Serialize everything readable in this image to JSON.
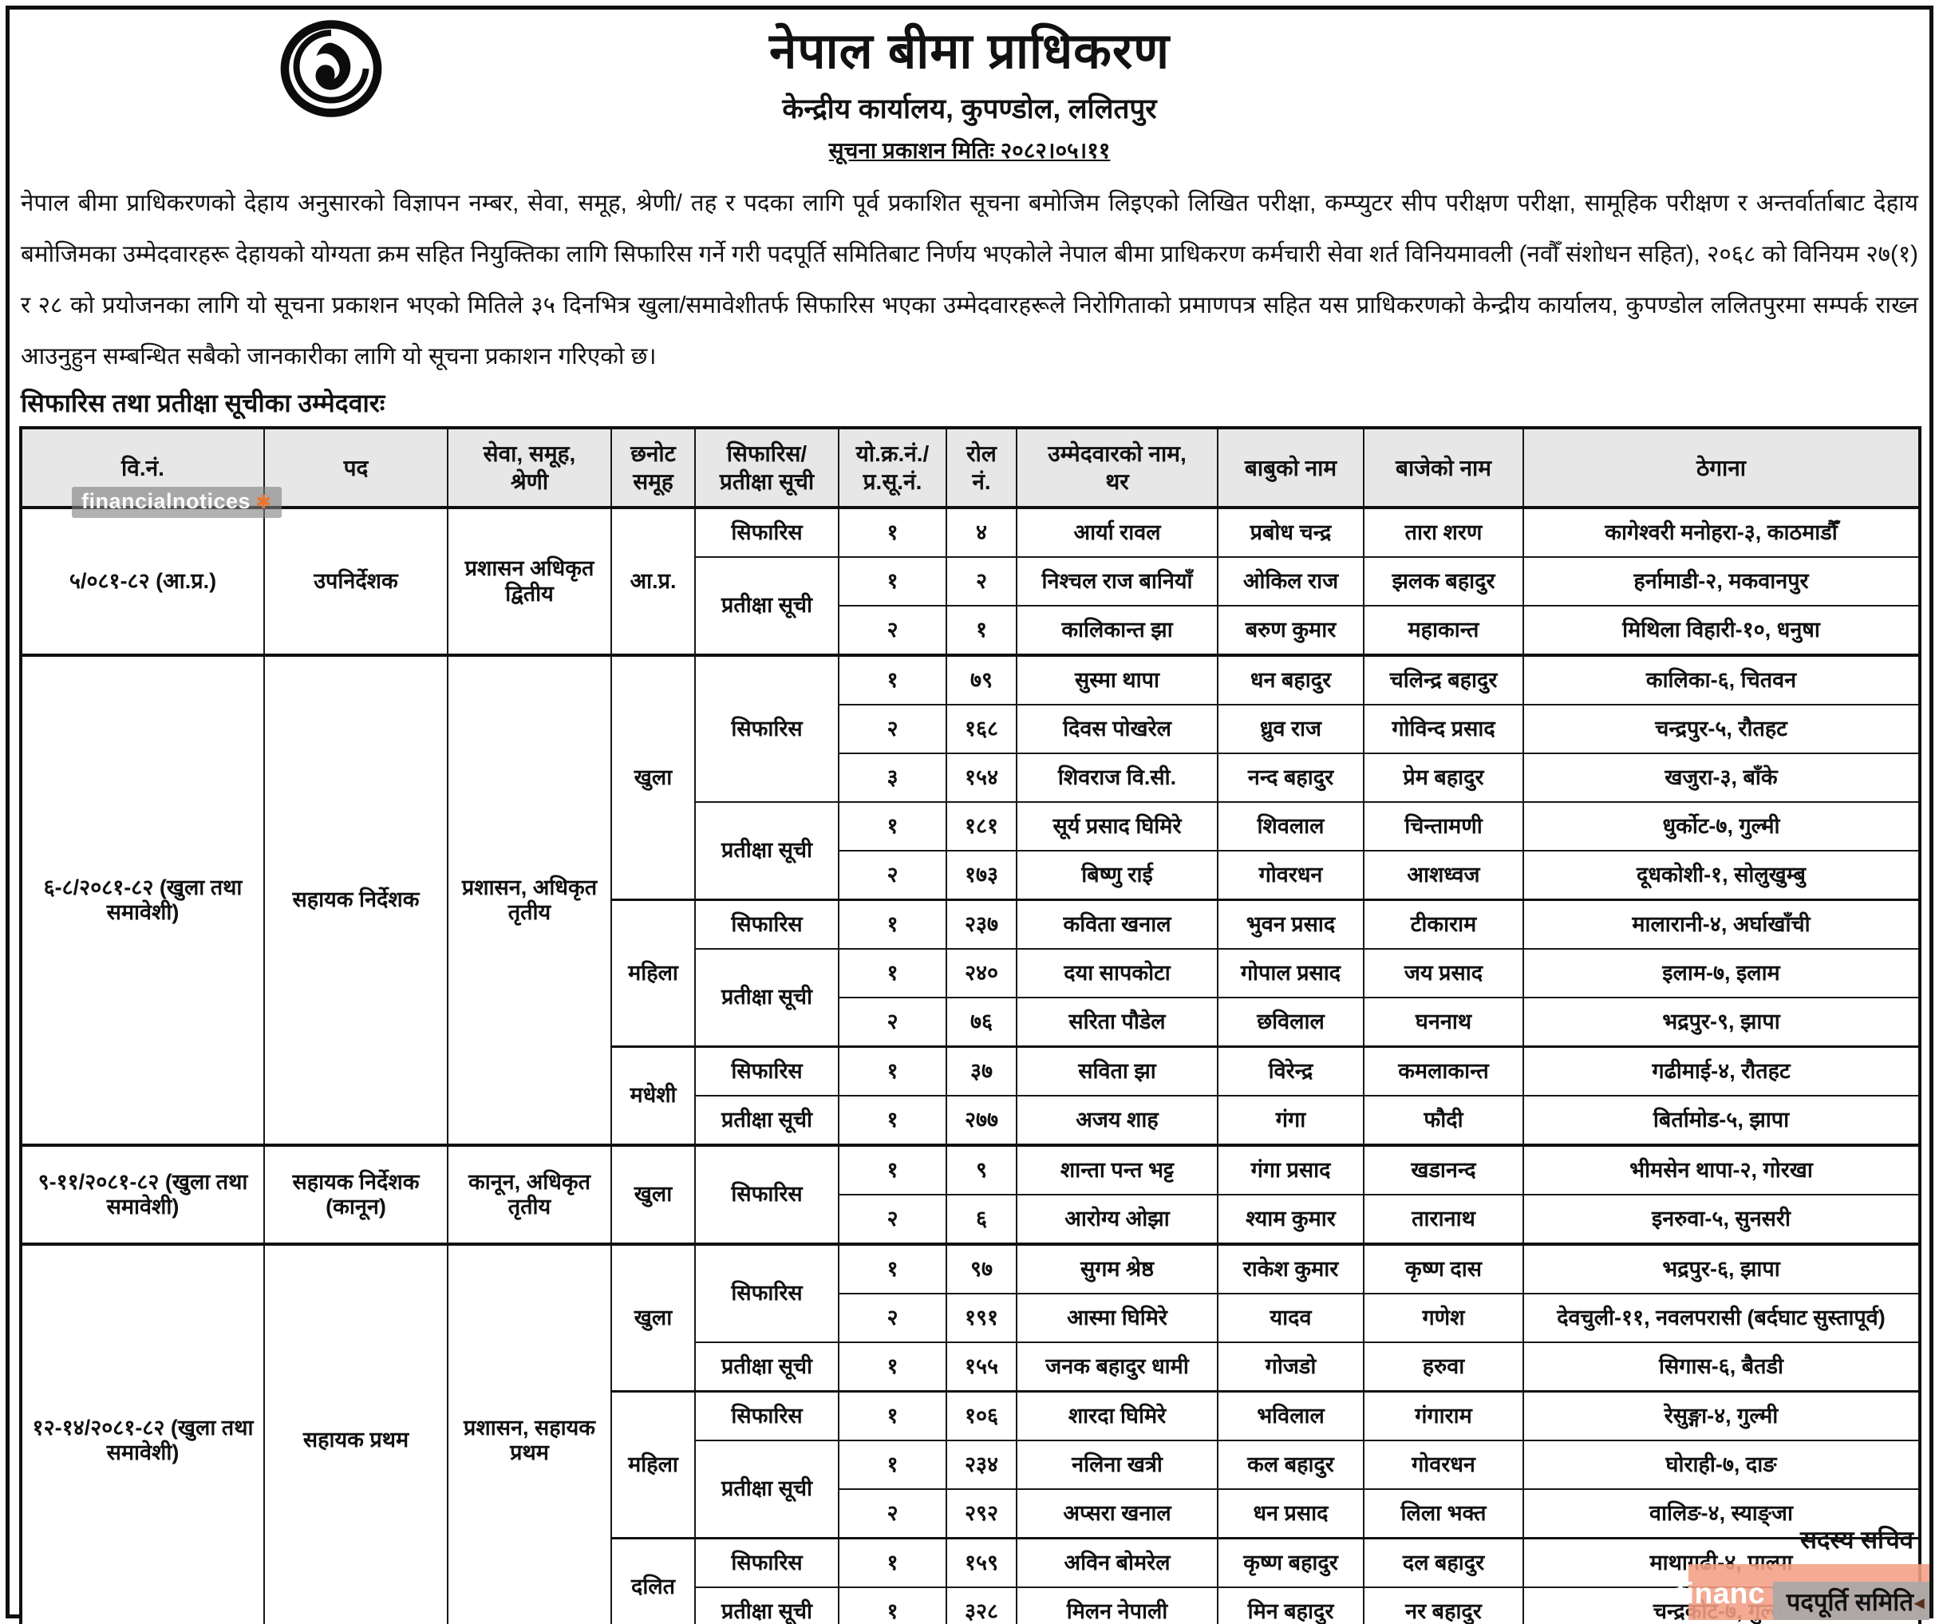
{
  "header": {
    "title": "नेपाल बीमा प्राधिकरण",
    "subtitle": "केन्द्रीय कार्यालय, कुपण्डोल, ललितपुर",
    "date_line": "सूचना प्रकाशन मितिः २०८२।०५।११"
  },
  "intro_paragraph": "नेपाल बीमा प्राधिकरणको देहाय अनुसारको विज्ञापन नम्बर, सेवा, समूह, श्रेणी/ तह र पदका लागि पूर्व प्रकाशित सूचना बमोजिम लिइएको लिखित परीक्षा, कम्प्युटर सीप परीक्षण परीक्षा, सामूहिक परीक्षण र अन्तर्वार्ताबाट देहाय बमोजिमका उम्मेदवारहरू देहायको योग्यता क्रम सहित नियुक्तिका लागि सिफारिस गर्ने गरी पदपूर्ति समितिबाट निर्णय भएकोले नेपाल बीमा प्राधिकरण कर्मचारी सेवा शर्त विनियमावली (नवौँ संशोधन सहित), २०६८ को विनियम २७(१) र २८ को प्रयोजनका लागि यो सूचना प्रकाशन भएको मितिले ३५ दिनभित्र खुला/समावेशीतर्फ सिफारिस भएका उम्मेदवारहरूले निरोगिताको प्रमाणपत्र सहित यस प्राधिकरणको केन्द्रीय कार्यालय, कुपण्डोल ललितपुरमा सम्पर्क राख्न आउनुहुन सम्बन्धित सबैको जानकारीका लागि यो सूचना प्रकाशन गरिएको छ।",
  "section_heading": "सिफारिस तथा प्रतीक्षा सूचीका उम्मेदवारः",
  "table": {
    "headers": [
      "वि.नं.",
      "पद",
      "सेवा, समूह,\nश्रेणी",
      "छनोट\nसमूह",
      "सिफारिस/\nप्रतीक्षा सूची",
      "यो.क्र.नं./\nप्र.सू.नं.",
      "रोल\nनं.",
      "उम्मेदवारको नाम,\nथर",
      "बाबुको नाम",
      "बाजेको नाम",
      "ठेगाना"
    ],
    "sections": [
      {
        "vn": "५/०८१-८२ (आ.प्र.)",
        "post": "उपनिर्देशक",
        "service": "प्रशासन अधिकृत द्वितीय",
        "groups": [
          {
            "name": "आ.प्र.",
            "lists": [
              {
                "type": "सिफारिस",
                "candidates": [
                  {
                    "sn": "१",
                    "roll": "४",
                    "name": "आर्या रावल",
                    "father": "प्रबोध चन्द्र",
                    "grandfather": "तारा शरण",
                    "address": "कागेश्वरी मनोहरा-३, काठमाडौँ"
                  }
                ]
              },
              {
                "type": "प्रतीक्षा सूची",
                "candidates": [
                  {
                    "sn": "१",
                    "roll": "२",
                    "name": "निश्चल राज बानियाँ",
                    "father": "ओकिल राज",
                    "grandfather": "झलक बहादुर",
                    "address": "हर्नामाडी-२, मकवानपुर"
                  },
                  {
                    "sn": "२",
                    "roll": "१",
                    "name": "कालिकान्त झा",
                    "father": "बरुण कुमार",
                    "grandfather": "महाकान्त",
                    "address": "मिथिला विहारी-१०, धनुषा"
                  }
                ]
              }
            ]
          }
        ]
      },
      {
        "vn": "६-८/२०८१-८२ (खुला तथा समावेशी)",
        "post": "सहायक निर्देशक",
        "service": "प्रशासन, अधिकृत तृतीय",
        "groups": [
          {
            "name": "खुला",
            "lists": [
              {
                "type": "सिफारिस",
                "candidates": [
                  {
                    "sn": "१",
                    "roll": "७९",
                    "name": "सुस्मा थापा",
                    "father": "धन बहादुर",
                    "grandfather": "चलिन्द्र बहादुर",
                    "address": "कालिका-६, चितवन"
                  },
                  {
                    "sn": "२",
                    "roll": "१६८",
                    "name": "दिवस पोखरेल",
                    "father": "ध्रुव राज",
                    "grandfather": "गोविन्द प्रसाद",
                    "address": "चन्द्रपुर-५, रौतहट"
                  },
                  {
                    "sn": "३",
                    "roll": "१५४",
                    "name": "शिवराज वि.सी.",
                    "father": "नन्द बहादुर",
                    "grandfather": "प्रेम बहादुर",
                    "address": "खजुरा-३, बाँके"
                  }
                ]
              },
              {
                "type": "प्रतीक्षा सूची",
                "candidates": [
                  {
                    "sn": "१",
                    "roll": "१८१",
                    "name": "सूर्य प्रसाद घिमिरे",
                    "father": "शिवलाल",
                    "grandfather": "चिन्तामणी",
                    "address": "धुर्कोट-७, गुल्मी"
                  },
                  {
                    "sn": "२",
                    "roll": "१७३",
                    "name": "बिष्णु राई",
                    "father": "गोवरधन",
                    "grandfather": "आशध्वज",
                    "address": "दूधकोशी-१, सोलुखुम्बु"
                  }
                ]
              }
            ]
          },
          {
            "name": "महिला",
            "lists": [
              {
                "type": "सिफारिस",
                "candidates": [
                  {
                    "sn": "१",
                    "roll": "२३७",
                    "name": "कविता खनाल",
                    "father": "भुवन प्रसाद",
                    "grandfather": "टीकाराम",
                    "address": "मालारानी-४, अर्घाखाँची"
                  }
                ]
              },
              {
                "type": "प्रतीक्षा सूची",
                "candidates": [
                  {
                    "sn": "१",
                    "roll": "२४०",
                    "name": "दया सापकोटा",
                    "father": "गोपाल प्रसाद",
                    "grandfather": "जय प्रसाद",
                    "address": "इलाम-७, इलाम"
                  },
                  {
                    "sn": "२",
                    "roll": "७६",
                    "name": "सरिता पौडेल",
                    "father": "छविलाल",
                    "grandfather": "घननाथ",
                    "address": "भद्रपुर-९, झापा"
                  }
                ]
              }
            ]
          },
          {
            "name": "मधेशी",
            "lists": [
              {
                "type": "सिफारिस",
                "candidates": [
                  {
                    "sn": "१",
                    "roll": "३७",
                    "name": "सविता झा",
                    "father": "विरेन्द्र",
                    "grandfather": "कमलाकान्त",
                    "address": "गढीमाई-४, रौतहट"
                  }
                ]
              },
              {
                "type": "प्रतीक्षा सूची",
                "candidates": [
                  {
                    "sn": "१",
                    "roll": "२७७",
                    "name": "अजय शाह",
                    "father": "गंगा",
                    "grandfather": "फौदी",
                    "address": "बिर्तामोड-५, झापा"
                  }
                ]
              }
            ]
          }
        ]
      },
      {
        "vn": "९-११/२०८१-८२ (खुला तथा समावेशी)",
        "post": "सहायक निर्देशक (कानून)",
        "service": "कानून, अधिकृत तृतीय",
        "groups": [
          {
            "name": "खुला",
            "lists": [
              {
                "type": "सिफारिस",
                "candidates": [
                  {
                    "sn": "१",
                    "roll": "९",
                    "name": "शान्ता पन्त भट्ट",
                    "father": "गंगा प्रसाद",
                    "grandfather": "खडानन्द",
                    "address": "भीमसेन थापा-२, गोरखा"
                  },
                  {
                    "sn": "२",
                    "roll": "६",
                    "name": "आरोग्य ओझा",
                    "father": "श्याम कुमार",
                    "grandfather": "तारानाथ",
                    "address": "इनरुवा-५, सुनसरी"
                  }
                ]
              }
            ]
          }
        ]
      },
      {
        "vn": "१२-१४/२०८१-८२ (खुला तथा समावेशी)",
        "post": "सहायक प्रथम",
        "service": "प्रशासन, सहायक प्रथम",
        "groups": [
          {
            "name": "खुला",
            "lists": [
              {
                "type": "सिफारिस",
                "candidates": [
                  {
                    "sn": "१",
                    "roll": "९७",
                    "name": "सुगम श्रेष्ठ",
                    "father": "राकेश कुमार",
                    "grandfather": "कृष्ण दास",
                    "address": "भद्रपुर-६, झापा"
                  },
                  {
                    "sn": "२",
                    "roll": "१९१",
                    "name": "आस्मा घिमिरे",
                    "father": "यादव",
                    "grandfather": "गणेश",
                    "address": "देवचुली-११, नवलपरासी (बर्दघाट सुस्तापूर्व)"
                  }
                ]
              },
              {
                "type": "प्रतीक्षा सूची",
                "candidates": [
                  {
                    "sn": "१",
                    "roll": "१५५",
                    "name": "जनक बहादुर धामी",
                    "father": "गोजडो",
                    "grandfather": "हरुवा",
                    "address": "सिगास-६, बैतडी"
                  }
                ]
              }
            ]
          },
          {
            "name": "महिला",
            "lists": [
              {
                "type": "सिफारिस",
                "candidates": [
                  {
                    "sn": "१",
                    "roll": "१०६",
                    "name": "शारदा घिमिरे",
                    "father": "भविलाल",
                    "grandfather": "गंगाराम",
                    "address": "रेसुङ्गा-४, गुल्मी"
                  }
                ]
              },
              {
                "type": "प्रतीक्षा सूची",
                "candidates": [
                  {
                    "sn": "१",
                    "roll": "२३४",
                    "name": "नलिना खत्री",
                    "father": "कल बहादुर",
                    "grandfather": "गोवरधन",
                    "address": "घोराही-७, दाङ"
                  },
                  {
                    "sn": "२",
                    "roll": "२९२",
                    "name": "अप्सरा खनाल",
                    "father": "धन प्रसाद",
                    "grandfather": "लिला भक्त",
                    "address": "वालिङ-४, स्याङ्जा"
                  }
                ]
              }
            ]
          },
          {
            "name": "दलित",
            "lists": [
              {
                "type": "सिफारिस",
                "candidates": [
                  {
                    "sn": "१",
                    "roll": "१५९",
                    "name": "अविन बोमरेल",
                    "father": "कृष्ण बहादुर",
                    "grandfather": "दल बहादुर",
                    "address": "माथागढी-४, पाल्पा"
                  }
                ]
              },
              {
                "type": "प्रतीक्षा सूची",
                "candidates": [
                  {
                    "sn": "१",
                    "roll": "३२८",
                    "name": "मिलन नेपाली",
                    "father": "मिन बहादुर",
                    "grandfather": "नर बहादुर",
                    "address": "चन्द्रकोट-७, गुल्मी"
                  }
                ]
              }
            ]
          }
        ]
      }
    ]
  },
  "footer": {
    "member_secretary": "सदस्य सचिव",
    "committee": "पदपूर्ति समिति"
  },
  "watermarks": {
    "left_text": "financialnotices",
    "bottom_partial_text": "financ",
    "accent_color": "#e8762d",
    "pink_color": "#f29e84",
    "grey_color": "#a8a8a8"
  }
}
